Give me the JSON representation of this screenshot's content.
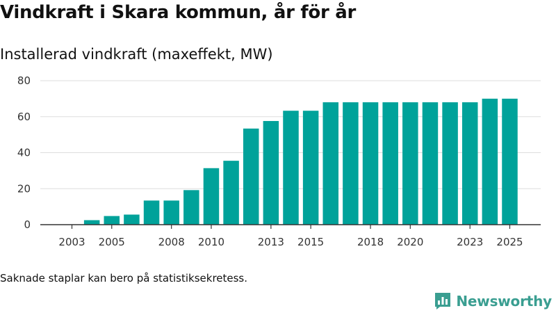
{
  "title": "Vindkraft i Skara kommun, år för år",
  "subtitle": "Installerad vindkraft (maxeffekt, MW)",
  "footnote": "Saknade staplar kan bero på statistiksekretess.",
  "brand": {
    "name": "Newsworthy",
    "color": "#3a9e91",
    "icon": "bar-chart-logo-icon"
  },
  "colors": {
    "bar": "#00a29a",
    "grid": "#dddddd",
    "axis": "#333333"
  },
  "chart_data": {
    "type": "bar",
    "title": "Installerad vindkraft (maxeffekt, MW)",
    "xlabel": "",
    "ylabel": "",
    "ylim": [
      0,
      80
    ],
    "yticks": [
      0,
      20,
      40,
      60,
      80
    ],
    "grid": true,
    "categories": [
      "2003",
      "2004",
      "2005",
      "2006",
      "2007",
      "2008",
      "2009",
      "2010",
      "2011",
      "2012",
      "2013",
      "2014",
      "2015",
      "2016",
      "2017",
      "2018",
      "2019",
      "2020",
      "2021",
      "2022",
      "2023",
      "2024",
      "2025"
    ],
    "xtick_labels": [
      "2003",
      "2005",
      "2008",
      "2010",
      "2013",
      "2015",
      "2018",
      "2020",
      "2023",
      "2025"
    ],
    "values": [
      0,
      2.5,
      4.8,
      5.6,
      13.4,
      13.4,
      19.2,
      31.4,
      35.5,
      53.4,
      57.6,
      63.3,
      63.3,
      68.0,
      68.0,
      68.0,
      68.0,
      68.0,
      68.0,
      68.0,
      68.0,
      70.0,
      70.0
    ]
  }
}
